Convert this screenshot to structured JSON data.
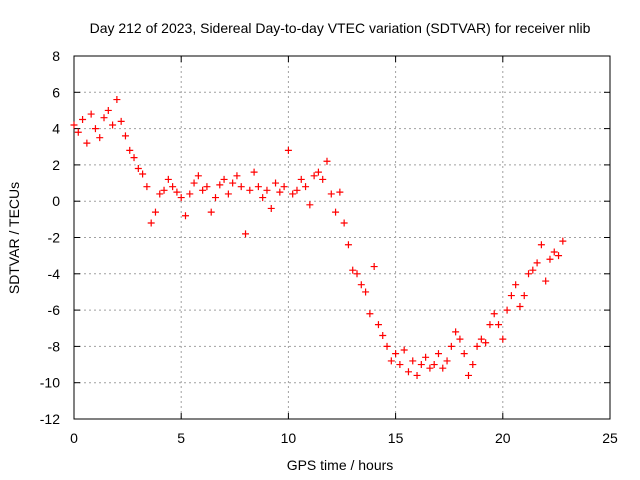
{
  "chart_data": {
    "type": "scatter",
    "title": "Day 212 of 2023, Sidereal Day-to-day VTEC variation (SDTVAR) for receiver nlib",
    "xlabel": "GPS time / hours",
    "ylabel": "SDTVAR / TECUs",
    "xlim": [
      0,
      25
    ],
    "ylim": [
      -12,
      8
    ],
    "xticks": [
      0,
      5,
      10,
      15,
      20,
      25
    ],
    "yticks": [
      -12,
      -10,
      -8,
      -6,
      -4,
      -2,
      0,
      2,
      4,
      6,
      8
    ],
    "grid": true,
    "marker": "+",
    "series": [
      {
        "name": "SDTVAR",
        "color": "#ff0000",
        "x": [
          0.0,
          0.2,
          0.4,
          0.6,
          0.8,
          1.0,
          1.2,
          1.4,
          1.6,
          1.8,
          2.0,
          2.2,
          2.4,
          2.6,
          2.8,
          3.0,
          3.2,
          3.4,
          3.6,
          3.8,
          4.0,
          4.2,
          4.4,
          4.6,
          4.8,
          5.0,
          5.2,
          5.4,
          5.6,
          5.8,
          6.0,
          6.2,
          6.4,
          6.6,
          6.8,
          7.0,
          7.2,
          7.4,
          7.6,
          7.8,
          8.0,
          8.2,
          8.4,
          8.6,
          8.8,
          9.0,
          9.2,
          9.4,
          9.6,
          9.8,
          10.0,
          10.2,
          10.4,
          10.6,
          10.8,
          11.0,
          11.2,
          11.4,
          11.6,
          11.8,
          12.0,
          12.2,
          12.4,
          12.6,
          12.8,
          13.0,
          13.2,
          13.4,
          13.6,
          13.8,
          14.0,
          14.2,
          14.4,
          14.6,
          14.8,
          15.0,
          15.2,
          15.4,
          15.6,
          15.8,
          16.0,
          16.2,
          16.4,
          16.6,
          16.8,
          17.0,
          17.2,
          17.4,
          17.6,
          17.8,
          18.0,
          18.2,
          18.4,
          18.6,
          18.8,
          19.0,
          19.2,
          19.4,
          19.6,
          19.8,
          20.0,
          20.2,
          20.4,
          20.6,
          20.8,
          21.0,
          21.2,
          21.4,
          21.6,
          21.8,
          22.0,
          22.2,
          22.4,
          22.6,
          22.8
        ],
        "y": [
          4.2,
          3.8,
          4.5,
          3.2,
          4.8,
          4.0,
          3.5,
          4.6,
          5.0,
          4.2,
          5.6,
          4.4,
          3.6,
          2.8,
          2.4,
          1.8,
          1.5,
          0.8,
          -1.2,
          -0.6,
          0.4,
          0.6,
          1.2,
          0.8,
          0.5,
          0.2,
          -0.8,
          0.4,
          1.0,
          1.4,
          0.6,
          0.8,
          -0.6,
          0.2,
          0.9,
          1.2,
          0.4,
          1.0,
          1.4,
          0.8,
          -1.8,
          0.6,
          1.6,
          0.8,
          0.2,
          0.6,
          -0.4,
          1.0,
          0.5,
          0.8,
          2.8,
          0.4,
          0.6,
          1.2,
          0.8,
          -0.2,
          1.4,
          1.6,
          1.2,
          2.2,
          0.4,
          -0.6,
          0.5,
          -1.2,
          -2.4,
          -3.8,
          -4.0,
          -4.6,
          -5.0,
          -6.2,
          -3.6,
          -6.8,
          -7.4,
          -8.0,
          -8.8,
          -8.4,
          -9.0,
          -8.2,
          -9.4,
          -8.8,
          -9.6,
          -9.0,
          -8.6,
          -9.2,
          -9.0,
          -8.4,
          -9.2,
          -8.8,
          -8.0,
          -7.2,
          -7.6,
          -8.4,
          -9.6,
          -9.0,
          -8.0,
          -7.6,
          -7.8,
          -6.8,
          -6.2,
          -6.8,
          -7.6,
          -6.0,
          -5.2,
          -4.6,
          -5.8,
          -5.2,
          -4.0,
          -3.8,
          -3.4,
          -2.4,
          -4.4,
          -3.2,
          -2.8,
          -3.0,
          -2.2
        ]
      }
    ]
  }
}
